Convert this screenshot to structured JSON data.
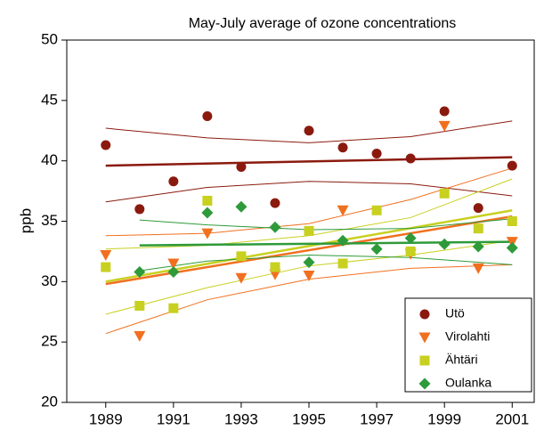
{
  "chart_data": {
    "type": "scatter",
    "title": "May-July average of ozone concentrations",
    "y_label": "ppb",
    "x": [
      1989,
      1990,
      1991,
      1992,
      1993,
      1994,
      1995,
      1996,
      1997,
      1998,
      1999,
      2000,
      2001
    ],
    "xlim": [
      1987.85,
      2001.65
    ],
    "xticks": [
      1989,
      1991,
      1993,
      1995,
      1997,
      1999,
      2001
    ],
    "ylim": [
      20,
      50
    ],
    "yticks": [
      20,
      25,
      30,
      35,
      40,
      45,
      50
    ],
    "grid": false,
    "legend": "lower right",
    "series": [
      {
        "name": "Utö",
        "color": "#8b1a0e",
        "marker": "circle",
        "values": [
          41.3,
          36.0,
          38.3,
          43.7,
          39.5,
          36.5,
          42.5,
          41.1,
          40.6,
          40.2,
          44.1,
          36.1,
          39.6
        ],
        "trend": {
          "x": [
            1989,
            2001
          ],
          "y": [
            39.6,
            40.3
          ]
        },
        "band": {
          "x": [
            1989,
            1992,
            1995,
            1998,
            2001
          ],
          "upper": [
            42.7,
            41.9,
            41.5,
            42.0,
            43.3
          ],
          "lower": [
            36.6,
            37.8,
            38.3,
            38.1,
            37.1
          ]
        }
      },
      {
        "name": "Virolahti",
        "color": "#f07020",
        "marker": "triangle",
        "values": [
          32.2,
          25.5,
          31.5,
          34.0,
          30.3,
          30.6,
          30.5,
          35.9,
          null,
          32.3,
          42.9,
          31.1,
          33.3
        ],
        "trend": {
          "x": [
            1989,
            2001
          ],
          "y": [
            29.8,
            35.4
          ]
        },
        "band": {
          "x": [
            1989,
            1992,
            1995,
            1998,
            2001
          ],
          "upper": [
            33.8,
            34.0,
            34.8,
            36.8,
            39.4
          ],
          "lower": [
            25.7,
            28.5,
            30.2,
            31.1,
            31.4
          ]
        }
      },
      {
        "name": "Ähtäri",
        "color": "#c8d020",
        "marker": "square",
        "values": [
          31.2,
          28.0,
          27.8,
          36.7,
          32.1,
          31.2,
          34.2,
          31.5,
          35.9,
          32.5,
          37.3,
          34.4,
          35.0
        ],
        "trend": {
          "x": [
            1989,
            2001
          ],
          "y": [
            30.0,
            35.9
          ]
        },
        "band": {
          "x": [
            1989,
            1992,
            1995,
            1998,
            2001
          ],
          "upper": [
            32.7,
            33.0,
            33.8,
            35.3,
            38.5
          ],
          "lower": [
            27.3,
            29.5,
            31.3,
            32.2,
            33.4
          ]
        }
      },
      {
        "name": "Oulanka",
        "color": "#2e9a3a",
        "marker": "diamond",
        "values": [
          null,
          30.8,
          30.8,
          35.7,
          36.2,
          34.5,
          31.6,
          33.4,
          32.7,
          33.6,
          33.1,
          32.9,
          32.8
        ],
        "trend": {
          "x": [
            1990,
            2001
          ],
          "y": [
            33.0,
            33.3
          ]
        },
        "band": {
          "x": [
            1990,
            1992,
            1995,
            1998,
            2001
          ],
          "upper": [
            35.1,
            34.7,
            34.3,
            34.4,
            35.2
          ],
          "lower": [
            30.9,
            31.7,
            32.2,
            32.0,
            31.4
          ]
        }
      }
    ]
  }
}
